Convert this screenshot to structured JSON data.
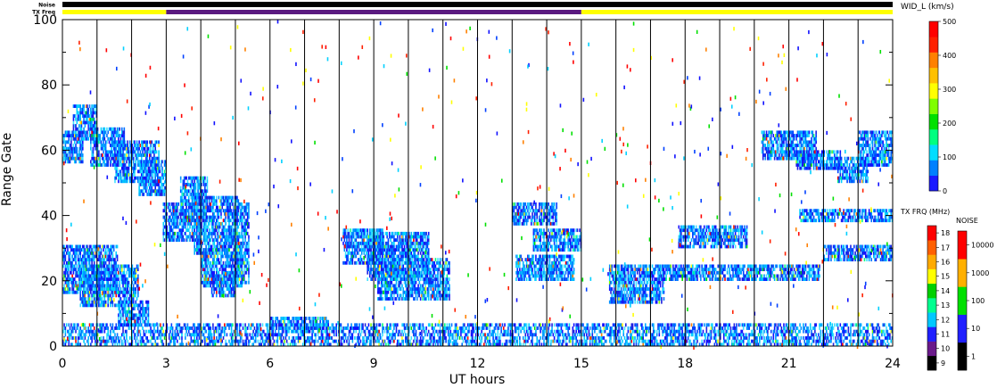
{
  "chart_data": {
    "type": "heatmap",
    "strip": {
      "noise_label": "Noise",
      "txfreq_label": "TX Freq",
      "txfreq_segments": [
        {
          "from": 0,
          "to": 3,
          "color": "#ffff00"
        },
        {
          "from": 3,
          "to": 15,
          "color": "#5a1a80"
        },
        {
          "from": 15,
          "to": 24,
          "color": "#ffff00"
        }
      ]
    },
    "xlabel": "UT hours",
    "ylabel": "Range Gate",
    "xlim": [
      0,
      24
    ],
    "ylim": [
      0,
      100
    ],
    "x_ticks": [
      "0",
      "3",
      "6",
      "9",
      "12",
      "15",
      "18",
      "21",
      "24"
    ],
    "y_ticks": [
      "0",
      "20",
      "40",
      "60",
      "80",
      "100"
    ],
    "hour_gridlines": true,
    "colorbars": [
      {
        "title": "WID_L (km/s)",
        "ticks": [
          "0",
          "100",
          "200",
          "300",
          "400",
          "500"
        ],
        "colors": [
          "#1a1aff",
          "#0080ff",
          "#00ddff",
          "#00ff80",
          "#00e000",
          "#80ff00",
          "#ffff00",
          "#ffc000",
          "#ff8000",
          "#ff2000",
          "#ff0000"
        ]
      },
      {
        "title": "TX FRQ (MHz)",
        "ticks": [
          "9",
          "10",
          "11",
          "12",
          "13",
          "14",
          "15",
          "16",
          "17",
          "18"
        ],
        "colors": [
          "#000000",
          "#6a1a8a",
          "#2020ff",
          "#00c8ff",
          "#00ff90",
          "#00d000",
          "#ffff00",
          "#ffaa00",
          "#ff6000",
          "#ff0000"
        ]
      },
      {
        "title": "NOISE",
        "ticks": [
          "1",
          "10",
          "100",
          "1000",
          "10000"
        ],
        "colors": [
          "#000000",
          "#2020ff",
          "#00e000",
          "#ffb000",
          "#ff0000"
        ]
      }
    ],
    "regions": [
      {
        "x0": 0.0,
        "x1": 0.6,
        "y0": 56,
        "y1": 66
      },
      {
        "x0": 0.3,
        "x1": 1.0,
        "y0": 63,
        "y1": 74
      },
      {
        "x0": 0.8,
        "x1": 1.8,
        "y0": 55,
        "y1": 67
      },
      {
        "x0": 1.5,
        "x1": 2.8,
        "y0": 50,
        "y1": 63
      },
      {
        "x0": 2.2,
        "x1": 3.0,
        "y0": 46,
        "y1": 57
      },
      {
        "x0": 0.0,
        "x1": 1.6,
        "y0": 16,
        "y1": 31
      },
      {
        "x0": 0.5,
        "x1": 2.2,
        "y0": 12,
        "y1": 25
      },
      {
        "x0": 1.6,
        "x1": 2.5,
        "y0": 6,
        "y1": 14
      },
      {
        "x0": 2.9,
        "x1": 3.9,
        "y0": 32,
        "y1": 44
      },
      {
        "x0": 3.4,
        "x1": 4.2,
        "y0": 38,
        "y1": 52
      },
      {
        "x0": 3.8,
        "x1": 5.1,
        "y0": 28,
        "y1": 46
      },
      {
        "x0": 4.0,
        "x1": 5.2,
        "y0": 18,
        "y1": 30
      },
      {
        "x0": 4.3,
        "x1": 5.0,
        "y0": 15,
        "y1": 22
      },
      {
        "x0": 5.0,
        "x1": 5.4,
        "y0": 19,
        "y1": 44
      },
      {
        "x0": 6.0,
        "x1": 7.7,
        "y0": 5,
        "y1": 9
      },
      {
        "x0": 8.1,
        "x1": 9.3,
        "y0": 25,
        "y1": 36
      },
      {
        "x0": 8.8,
        "x1": 10.6,
        "y0": 20,
        "y1": 35
      },
      {
        "x0": 9.1,
        "x1": 11.2,
        "y0": 14,
        "y1": 27
      },
      {
        "x0": 13.0,
        "x1": 14.3,
        "y0": 37,
        "y1": 44
      },
      {
        "x0": 13.6,
        "x1": 15.0,
        "y0": 29,
        "y1": 36
      },
      {
        "x0": 13.1,
        "x1": 14.8,
        "y0": 20,
        "y1": 28
      },
      {
        "x0": 15.8,
        "x1": 17.4,
        "y0": 13,
        "y1": 25
      },
      {
        "x0": 17.2,
        "x1": 21.9,
        "y0": 20,
        "y1": 25
      },
      {
        "x0": 17.8,
        "x1": 19.8,
        "y0": 30,
        "y1": 37
      },
      {
        "x0": 20.2,
        "x1": 21.8,
        "y0": 57,
        "y1": 66
      },
      {
        "x0": 21.2,
        "x1": 22.5,
        "y0": 54,
        "y1": 60
      },
      {
        "x0": 22.4,
        "x1": 23.3,
        "y0": 50,
        "y1": 58
      },
      {
        "x0": 23.0,
        "x1": 24.0,
        "y0": 55,
        "y1": 66
      },
      {
        "x0": 21.3,
        "x1": 24.0,
        "y0": 38,
        "y1": 42
      },
      {
        "x0": 22.0,
        "x1": 24.0,
        "y0": 26,
        "y1": 31
      },
      {
        "x0": 0.0,
        "x1": 24.0,
        "y0": 0,
        "y1": 7
      }
    ]
  }
}
